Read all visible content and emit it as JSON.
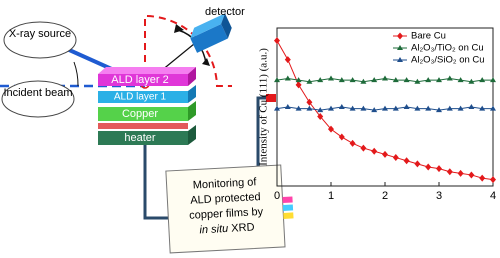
{
  "diagram": {
    "xray_source": "X-ray source",
    "incident_beam": "Incident beam",
    "detector": "detector",
    "layers": [
      "ALD layer 2",
      "ALD layer 1",
      "Copper",
      "heater"
    ],
    "note": {
      "lines": [
        "Monitoring of",
        "ALD protected",
        "copper films  by"
      ],
      "italic": "in situ",
      "last": " XRD"
    }
  },
  "chart_data": {
    "type": "scatter-line",
    "ylabel": "Intensity of Cu (111) (a.u.)",
    "x": [
      0,
      0.2,
      0.4,
      0.6,
      0.8,
      1.0,
      1.2,
      1.4,
      1.6,
      1.8,
      2.0,
      2.2,
      2.4,
      2.6,
      2.8,
      3.0,
      3.2,
      3.4,
      3.6,
      3.8,
      4.0
    ],
    "xlim": [
      0,
      4
    ],
    "xticks": [
      0,
      1,
      2,
      3,
      4
    ],
    "ylim": [
      0,
      1
    ],
    "legend": "top-right",
    "series": [
      {
        "name": "Bare Cu",
        "color": "#e3191b",
        "marker": "diamond",
        "values": [
          0.92,
          0.8,
          0.64,
          0.53,
          0.44,
          0.36,
          0.31,
          0.27,
          0.24,
          0.22,
          0.2,
          0.18,
          0.16,
          0.14,
          0.12,
          0.11,
          0.09,
          0.08,
          0.07,
          0.05,
          0.04
        ]
      },
      {
        "name": "Al₂O₃/TiO₂ on Cu",
        "color": "#1e6b3a",
        "marker": "triangle",
        "values": [
          0.67,
          0.68,
          0.67,
          0.66,
          0.67,
          0.68,
          0.67,
          0.67,
          0.66,
          0.67,
          0.68,
          0.67,
          0.67,
          0.66,
          0.67,
          0.67,
          0.68,
          0.67,
          0.66,
          0.67,
          0.67
        ]
      },
      {
        "name": "Al₂O₃/SiO₂ on Cu",
        "color": "#1f4e8c",
        "marker": "triangle",
        "values": [
          0.49,
          0.5,
          0.49,
          0.49,
          0.48,
          0.49,
          0.5,
          0.49,
          0.49,
          0.48,
          0.49,
          0.49,
          0.5,
          0.49,
          0.49,
          0.48,
          0.49,
          0.49,
          0.5,
          0.49,
          0.49
        ]
      }
    ]
  }
}
